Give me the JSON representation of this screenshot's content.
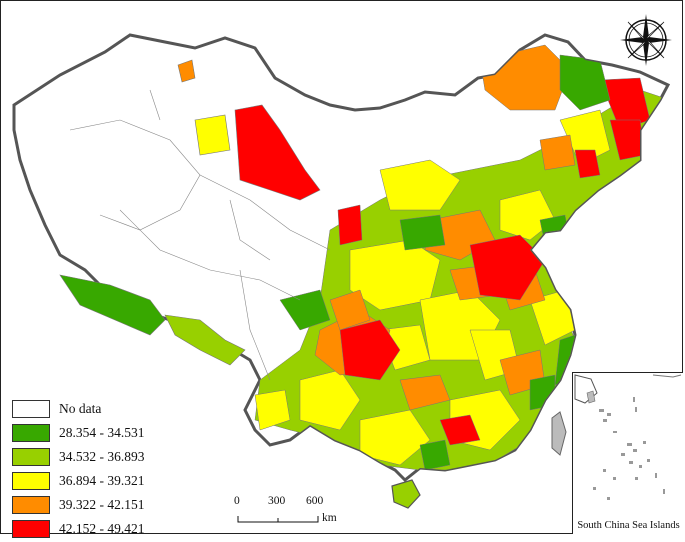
{
  "legend": {
    "items": [
      {
        "label": "No data",
        "color": "#ffffff"
      },
      {
        "label": "28.354 - 34.531",
        "color": "#38a800"
      },
      {
        "label": "34.532 - 36.893",
        "color": "#98d000"
      },
      {
        "label": "36.894 - 39.321",
        "color": "#ffff00"
      },
      {
        "label": "39.322 - 42.151",
        "color": "#ff8c00"
      },
      {
        "label": "42.152 - 49.421",
        "color": "#ff0000"
      }
    ]
  },
  "scalebar": {
    "ticks": [
      "0",
      "300",
      "600"
    ],
    "unit": "km"
  },
  "inset": {
    "label": "South China Sea Islands"
  },
  "compass": {
    "icon": "compass-rose-icon"
  }
}
